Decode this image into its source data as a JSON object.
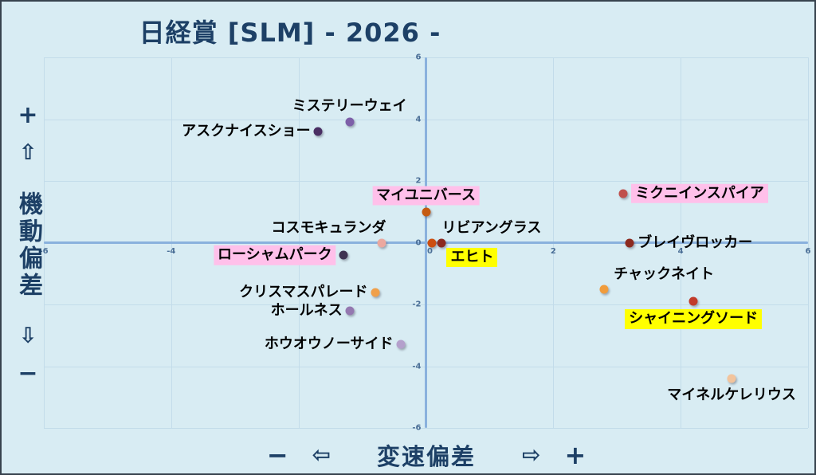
{
  "title": "日経賞 [SLM]  - 2026 -",
  "axes": {
    "y": {
      "title": "機動偏差",
      "plus": "+",
      "minus": "−",
      "arrow_up": "⇧",
      "arrow_down": "⇩"
    },
    "x": {
      "title": "変速偏差",
      "plus": "+",
      "minus": "−",
      "arrow_left": "⇦",
      "arrow_right": "⇨"
    }
  },
  "style": {
    "background": "#d8ecf3",
    "border": "#37424d",
    "axis_line": "#8ab1dd",
    "gridline": "#c3dcea",
    "tick_color": "#4a6e96",
    "title_color": "#1d4066",
    "highlight_pink": "#ffc0ea",
    "highlight_yellow": "#ffff00"
  },
  "chart_data": {
    "type": "scatter",
    "title": "日経賞 [SLM]  - 2026 -",
    "xlabel": "変速偏差",
    "ylabel": "機動偏差",
    "xlim": [
      -6,
      6
    ],
    "ylim": [
      -6,
      6
    ],
    "x_ticks": [
      -6,
      -4,
      -2,
      0,
      2,
      4,
      6
    ],
    "y_ticks": [
      -6,
      -4,
      -2,
      0,
      2,
      4,
      6
    ],
    "grid": true,
    "legend": false,
    "points": [
      {
        "name": "ミステリーウェイ",
        "x": -1.2,
        "y": 3.9,
        "color": "#7d5fa8",
        "label_side": "above",
        "highlight": null
      },
      {
        "name": "アスクナイスショー",
        "x": -1.7,
        "y": 3.6,
        "color": "#4a2f63",
        "label_side": "left",
        "highlight": null
      },
      {
        "name": "マイユニバース",
        "x": 0.0,
        "y": 1.0,
        "color": "#c55a11",
        "label_side": "above",
        "highlight": "#ffc0ea"
      },
      {
        "name": "ミクニインスパイア",
        "x": 3.1,
        "y": 1.6,
        "color": "#c0504d",
        "label_side": "right",
        "highlight": "#ffc0ea"
      },
      {
        "name": "コスモキュランダ",
        "x": -0.7,
        "y": 0.0,
        "color": "#eba89f",
        "label_side": "above-left",
        "highlight": null
      },
      {
        "name": "リビアングラス",
        "x": 0.1,
        "y": 0.0,
        "color": "#cc4e10",
        "label_side": "above-right",
        "highlight": null
      },
      {
        "name": "エヒト",
        "x": 0.25,
        "y": 0.0,
        "color": "#8c2a20",
        "label_side": "below-right",
        "highlight": "#ffff00"
      },
      {
        "name": "ブレイヴロッカー",
        "x": 3.2,
        "y": 0.0,
        "color": "#8c2a20",
        "label_side": "right",
        "highlight": null
      },
      {
        "name": "ローシャムパーク",
        "x": -1.3,
        "y": -0.4,
        "color": "#3f3151",
        "label_side": "left",
        "highlight": "#ffc0ea"
      },
      {
        "name": "チャックネイト",
        "x": 2.8,
        "y": -1.5,
        "color": "#f09c3c",
        "label_side": "above-right",
        "highlight": null
      },
      {
        "name": "クリスマスパレード",
        "x": -0.8,
        "y": -1.6,
        "color": "#f0a04b",
        "label_side": "left",
        "highlight": null
      },
      {
        "name": "ホールネス",
        "x": -1.2,
        "y": -2.2,
        "color": "#9478b0",
        "label_side": "left",
        "highlight": null
      },
      {
        "name": "シャイニングソード",
        "x": 4.2,
        "y": -1.9,
        "color": "#c13b2a",
        "label_side": "below",
        "highlight": "#ffff00"
      },
      {
        "name": "ホウオウノーサイド",
        "x": -0.4,
        "y": -3.3,
        "color": "#b4a0cc",
        "label_side": "left",
        "highlight": null
      },
      {
        "name": "マイネルケレリウス",
        "x": 4.8,
        "y": -4.4,
        "color": "#f2c49c",
        "label_side": "below",
        "highlight": null
      }
    ]
  }
}
